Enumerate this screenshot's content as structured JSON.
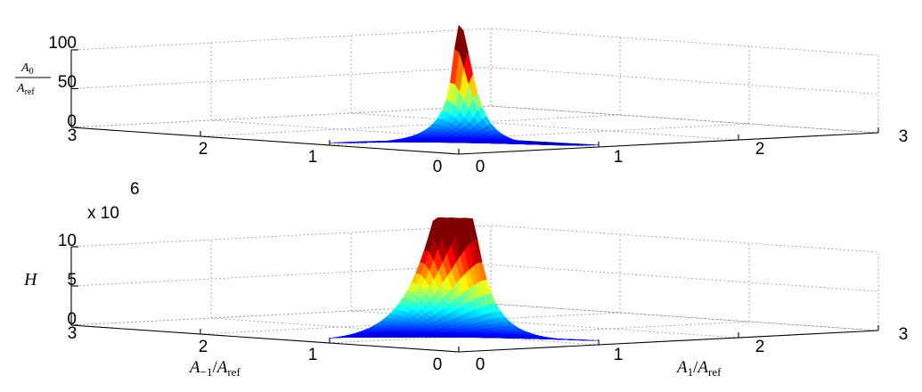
{
  "chart_data": [
    {
      "type": "surface3d",
      "zlabel": {
        "num": "A",
        "num_sub": "0",
        "den": "A",
        "den_sub": "ref"
      },
      "z_ticks": [
        "0",
        "50",
        "100"
      ],
      "z_max": 130,
      "x_label": "",
      "y_label": "",
      "x_ticks": [
        "0",
        "1",
        "2",
        "3"
      ],
      "y_ticks": [
        "0",
        "1",
        "2",
        "3"
      ],
      "multiplier": "",
      "grid": true,
      "colormap": "jet"
    },
    {
      "type": "surface3d",
      "zlabel": {
        "text": "H"
      },
      "z_ticks": [
        "0",
        "5",
        "10"
      ],
      "z_max": 13,
      "multiplier": "x 10",
      "multiplier_exp": "6",
      "x_label": {
        "base": "A",
        "base_sub": "1",
        "slash": "/",
        "den": "A",
        "den_sub": "ref"
      },
      "y_label": {
        "base": "A",
        "base_sub": "−1",
        "slash": "/",
        "den": "A",
        "den_sub": "ref"
      },
      "x_ticks": [
        "0",
        "1",
        "2",
        "3"
      ],
      "y_ticks": [
        "0",
        "1",
        "2",
        "3"
      ],
      "grid": true,
      "colormap": "jet"
    }
  ]
}
